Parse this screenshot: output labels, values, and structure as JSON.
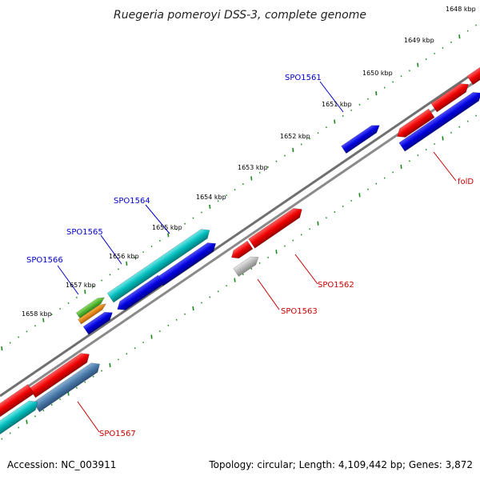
{
  "title": "Ruegeria pomeroyi DSS-3, complete genome",
  "footer": {
    "accession": "Accession: NC_003911",
    "summary": "Topology: circular; Length: 4,109,442 bp; Genes: 3,872"
  },
  "kbp_labels": [
    "1648 kbp",
    "1649 kbp",
    "1650 kbp",
    "1651 kbp",
    "1652 kbp",
    "1653 kbp",
    "1654 kbp",
    "1655 kbp",
    "1656 kbp",
    "1657 kbp",
    "1658 kbp"
  ],
  "gene_labels": {
    "spo1561": "SPO1561",
    "spo1564": "SPO1564",
    "spo1565": "SPO1565",
    "spo1566": "SPO1566",
    "spo1562": "SPO1562",
    "spo1563": "SPO1563",
    "fold": "folD",
    "spo1567": "SPO1567"
  },
  "colors": {
    "backbone": "#808080",
    "tick_green": "#1a8a1a",
    "blue_gene": "#0000dd",
    "red_gene": "#ee0000",
    "cyan_gene": "#00bbbb",
    "steel_gene": "#4a7aaa",
    "grey_gene": "#b0b0b0",
    "green_gene": "#44bb22",
    "orange_gene": "#ee8800",
    "label_blue": "#0000cc",
    "label_red": "#cc0000"
  }
}
